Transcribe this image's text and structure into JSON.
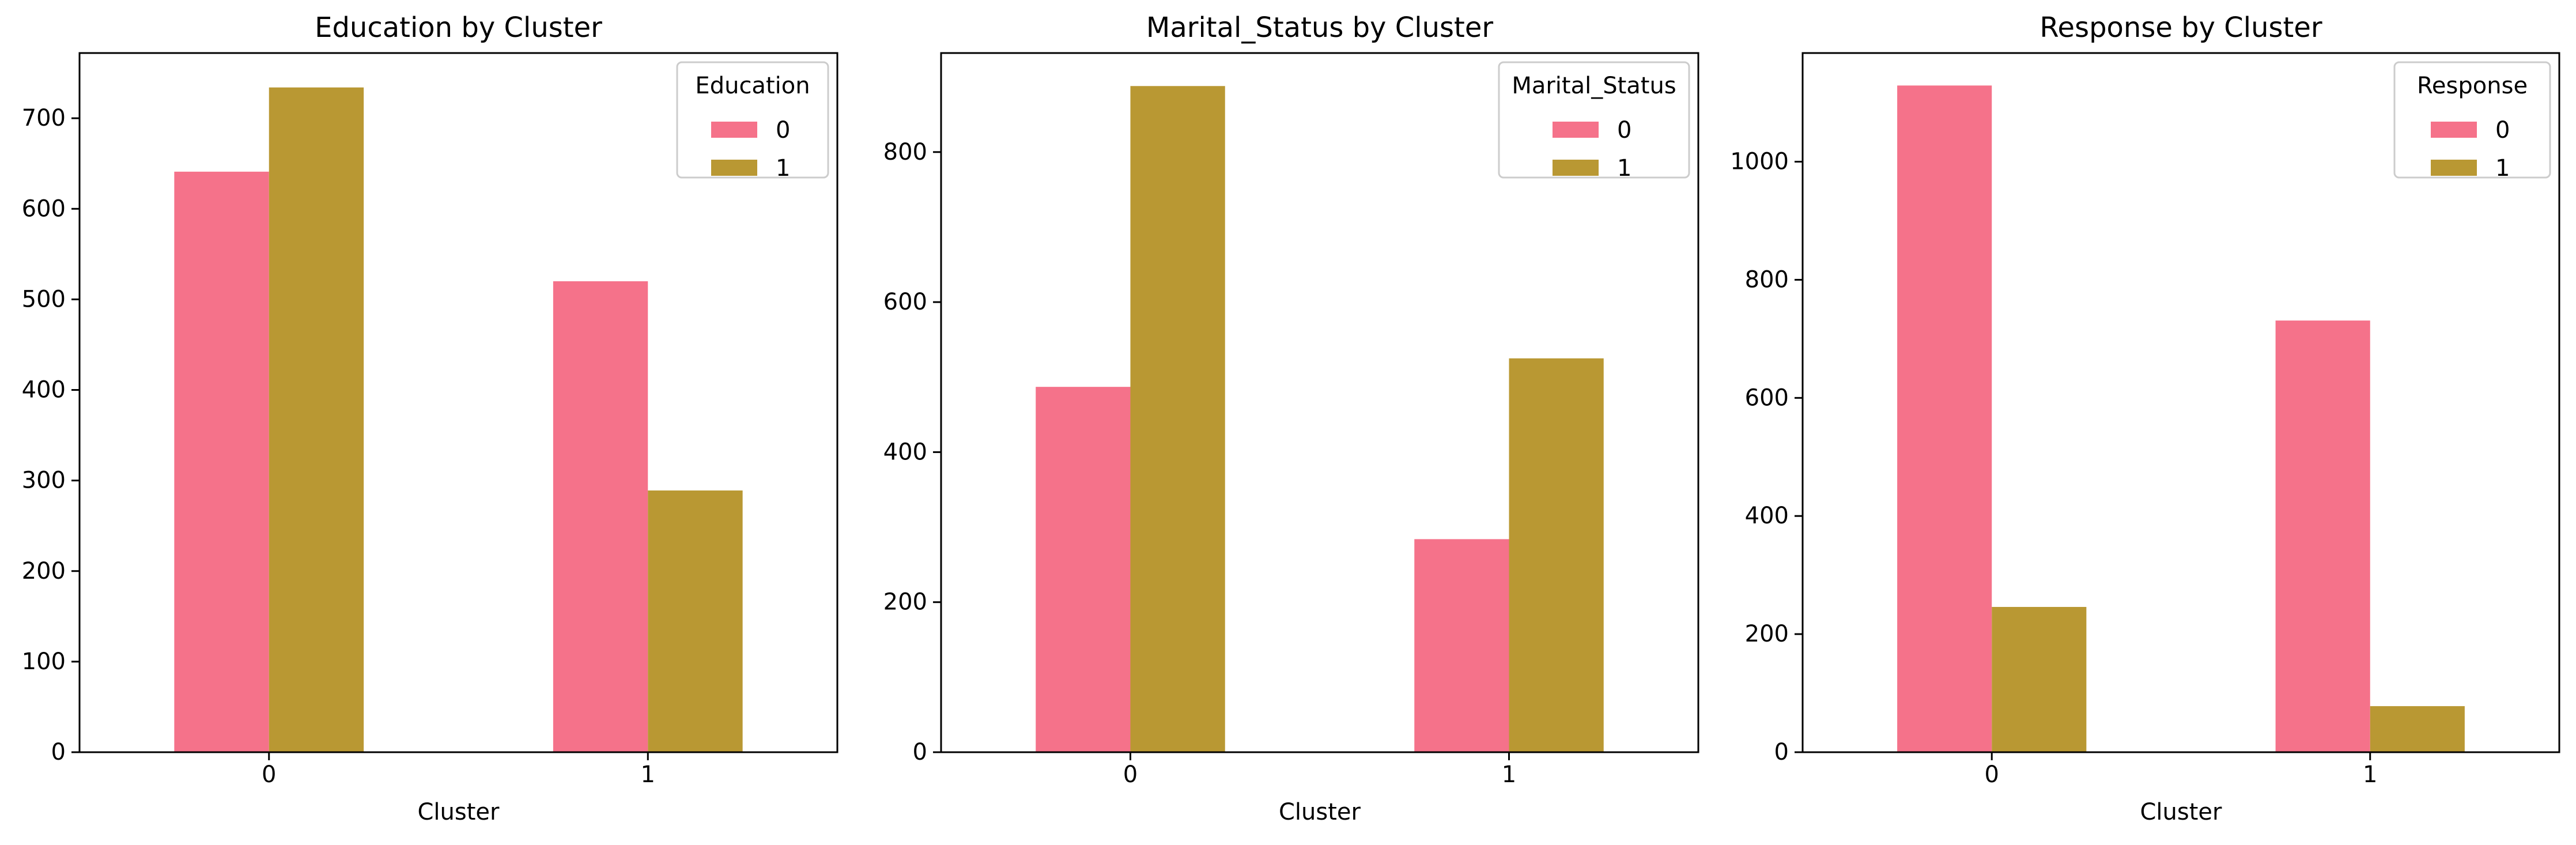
{
  "chart_data": [
    {
      "type": "bar",
      "title": "Education by Cluster",
      "xlabel": "Cluster",
      "ylabel": "",
      "categories": [
        "0",
        "1"
      ],
      "ylim": [
        0,
        772
      ],
      "yticks": [
        0,
        100,
        200,
        300,
        400,
        500,
        600,
        700
      ],
      "legend": {
        "title": "Education",
        "placement": "upper right"
      },
      "series": [
        {
          "name": "0",
          "color": "#f5728a",
          "values": [
            641,
            520
          ]
        },
        {
          "name": "1",
          "color": "#b99833",
          "values": [
            734,
            289
          ]
        }
      ]
    },
    {
      "type": "bar",
      "title": "Marital_Status by Cluster",
      "xlabel": "Cluster",
      "ylabel": "",
      "categories": [
        "0",
        "1"
      ],
      "ylim": [
        0,
        932
      ],
      "yticks": [
        0,
        200,
        400,
        600,
        800
      ],
      "legend": {
        "title": "Marital_Status",
        "placement": "upper right"
      },
      "series": [
        {
          "name": "0",
          "color": "#f5728a",
          "values": [
            487,
            284
          ]
        },
        {
          "name": "1",
          "color": "#b99833",
          "values": [
            888,
            525
          ]
        }
      ]
    },
    {
      "type": "bar",
      "title": "Response by Cluster",
      "xlabel": "Cluster",
      "ylabel": "",
      "categories": [
        "0",
        "1"
      ],
      "ylim": [
        0,
        1184
      ],
      "yticks": [
        0,
        200,
        400,
        600,
        800,
        1000
      ],
      "legend": {
        "title": "Response",
        "placement": "upper right"
      },
      "series": [
        {
          "name": "0",
          "color": "#f5728a",
          "values": [
            1129,
            731
          ]
        },
        {
          "name": "1",
          "color": "#b99833",
          "values": [
            246,
            78
          ]
        }
      ]
    }
  ]
}
